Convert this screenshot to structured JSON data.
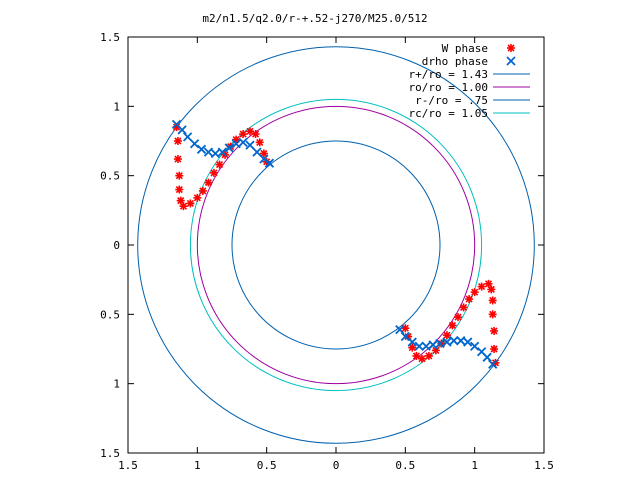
{
  "chart_data": {
    "type": "scatter",
    "title": "m2/n1.5/q2.0/r-+.52-j270/M25.0/512",
    "xlim": [
      -1.5,
      1.5
    ],
    "ylim": [
      -1.5,
      1.5
    ],
    "xticks": [
      -1.5,
      -1,
      -0.5,
      0,
      0.5,
      1,
      1.5
    ],
    "yticks": [
      -1.5,
      -1,
      -0.5,
      0,
      0.5,
      1,
      1.5
    ],
    "xtick_labels": [
      "1.5",
      "1",
      "0.5",
      "0",
      "0.5",
      "1",
      "1.5"
    ],
    "ytick_labels": [
      "1.5",
      "1",
      "0.5",
      "0",
      "0.5",
      "1",
      "1.5"
    ],
    "grid": false,
    "legend_position": "top-right",
    "series": [
      {
        "name": "W phase",
        "marker": "plus",
        "color": "#ff0000",
        "points": [
          [
            -1.15,
            0.85
          ],
          [
            -1.14,
            0.75
          ],
          [
            -1.14,
            0.62
          ],
          [
            -1.13,
            0.5
          ],
          [
            -1.13,
            0.4
          ],
          [
            -1.12,
            0.32
          ],
          [
            -1.1,
            0.28
          ],
          [
            -1.05,
            0.3
          ],
          [
            -1.0,
            0.34
          ],
          [
            -0.96,
            0.39
          ],
          [
            -0.92,
            0.45
          ],
          [
            -0.88,
            0.52
          ],
          [
            -0.84,
            0.58
          ],
          [
            -0.8,
            0.65
          ],
          [
            -0.76,
            0.71
          ],
          [
            -0.72,
            0.76
          ],
          [
            -0.67,
            0.8
          ],
          [
            -0.62,
            0.82
          ],
          [
            -0.58,
            0.8
          ],
          [
            -0.55,
            0.74
          ],
          [
            -0.52,
            0.66
          ],
          [
            -0.5,
            0.6
          ],
          [
            0.5,
            -0.6
          ],
          [
            0.52,
            -0.66
          ],
          [
            0.55,
            -0.74
          ],
          [
            0.58,
            -0.8
          ],
          [
            0.62,
            -0.82
          ],
          [
            0.67,
            -0.8
          ],
          [
            0.72,
            -0.76
          ],
          [
            0.76,
            -0.71
          ],
          [
            0.8,
            -0.65
          ],
          [
            0.84,
            -0.58
          ],
          [
            0.88,
            -0.52
          ],
          [
            0.92,
            -0.45
          ],
          [
            0.96,
            -0.39
          ],
          [
            1.0,
            -0.34
          ],
          [
            1.05,
            -0.3
          ],
          [
            1.1,
            -0.28
          ],
          [
            1.12,
            -0.32
          ],
          [
            1.13,
            -0.4
          ],
          [
            1.13,
            -0.5
          ],
          [
            1.14,
            -0.62
          ],
          [
            1.14,
            -0.75
          ],
          [
            1.15,
            -0.85
          ]
        ]
      },
      {
        "name": "drho phase",
        "marker": "cross",
        "color": "#0066cc",
        "points": [
          [
            -1.15,
            0.87
          ],
          [
            -1.11,
            0.83
          ],
          [
            -1.07,
            0.78
          ],
          [
            -1.02,
            0.73
          ],
          [
            -0.97,
            0.69
          ],
          [
            -0.92,
            0.67
          ],
          [
            -0.87,
            0.66
          ],
          [
            -0.82,
            0.67
          ],
          [
            -0.77,
            0.7
          ],
          [
            -0.72,
            0.73
          ],
          [
            -0.67,
            0.74
          ],
          [
            -0.62,
            0.72
          ],
          [
            -0.57,
            0.67
          ],
          [
            -0.52,
            0.62
          ],
          [
            -0.48,
            0.59
          ],
          [
            0.46,
            -0.61
          ],
          [
            0.5,
            -0.66
          ],
          [
            0.55,
            -0.7
          ],
          [
            0.6,
            -0.73
          ],
          [
            0.65,
            -0.73
          ],
          [
            0.7,
            -0.72
          ],
          [
            0.75,
            -0.71
          ],
          [
            0.8,
            -0.7
          ],
          [
            0.85,
            -0.69
          ],
          [
            0.9,
            -0.69
          ],
          [
            0.95,
            -0.7
          ],
          [
            1.0,
            -0.73
          ],
          [
            1.05,
            -0.77
          ],
          [
            1.09,
            -0.81
          ],
          [
            1.13,
            -0.86
          ]
        ]
      }
    ],
    "circles": [
      {
        "name": "r+/ro = 1.43",
        "radius": 1.43,
        "color": "#0060ad"
      },
      {
        "name": "ro/ro = 1.00",
        "radius": 1.0,
        "color": "#a000a0"
      },
      {
        "name": "r-/ro = .75",
        "radius": 0.75,
        "color": "#0060ad"
      },
      {
        "name": "rc/ro = 1.05",
        "radius": 1.05,
        "color": "#00c0c0"
      }
    ]
  }
}
